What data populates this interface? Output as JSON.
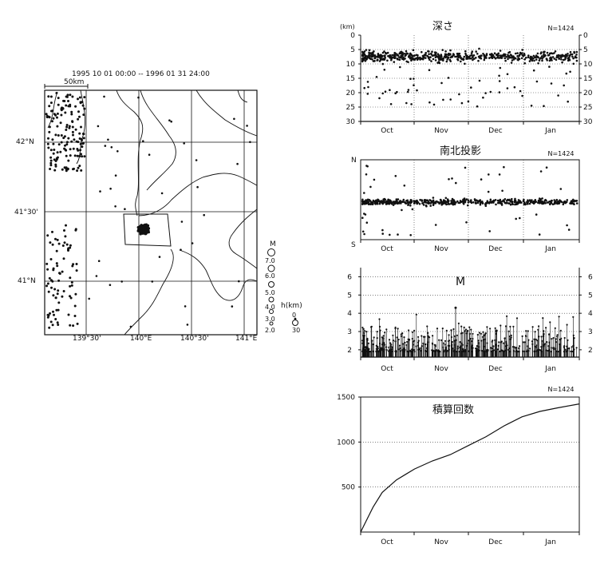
{
  "map": {
    "date_range": "1995 10 01 00:00 -- 1996 01 31 24:00",
    "scale_label": "50km",
    "lat_labels": [
      "42°N",
      "41°30'",
      "41°N"
    ],
    "lon_labels": [
      "139°30'",
      "140°E",
      "140°30'",
      "141°E"
    ],
    "mag_legend_title": "M",
    "mag_legend": [
      "7.0",
      "6.0",
      "5.0",
      "4.0",
      "3.0",
      "2.0"
    ],
    "depth_legend_title": "h(km)",
    "depth_legend": [
      "0",
      "30"
    ]
  },
  "chart_data": [
    {
      "type": "scatter",
      "title": "深さ",
      "count_label": "N=1424",
      "ylabel": "(km)",
      "yticks": [
        "0",
        "5",
        "10",
        "15",
        "20",
        "25",
        "30"
      ],
      "ylim": [
        0,
        30
      ],
      "x_labels": [
        "Oct",
        "Nov",
        "Dec",
        "Jan"
      ],
      "xlim": [
        "1995-10-01",
        "1996-01-31"
      ],
      "grid": true,
      "series": [
        {
          "values": "approx. 1424 hypocenters, depth mostly 5–10 km, scattered to ~25 km"
        }
      ]
    },
    {
      "type": "scatter",
      "title": "南北投影",
      "count_label": "N=1424",
      "y_top_label": "N",
      "y_bottom_label": "S",
      "x_labels": [
        "Oct",
        "Nov",
        "Dec",
        "Jan"
      ],
      "xlim": [
        "1995-10-01",
        "1996-01-31"
      ]
    },
    {
      "type": "bar",
      "title": "M",
      "yticks": [
        "2",
        "3",
        "4",
        "5",
        "6"
      ],
      "ylim": [
        1.6,
        6.5
      ],
      "x_labels": [
        "Oct",
        "Nov",
        "Dec",
        "Jan"
      ],
      "xlim": [
        "1995-10-01",
        "1996-01-31"
      ],
      "max_magnitude": 4.3
    },
    {
      "type": "line",
      "title": "積算回数",
      "count_label": "N=1424",
      "yticks": [
        "500",
        "1000",
        "1500"
      ],
      "ylim": [
        0,
        1500
      ],
      "x_labels": [
        "Oct",
        "Nov",
        "Dec",
        "Jan"
      ],
      "xlim": [
        "1995-10-01",
        "1996-01-31"
      ],
      "x": [
        0,
        3,
        7,
        12,
        20,
        30,
        40,
        50,
        60,
        70,
        80,
        90,
        100,
        110,
        122
      ],
      "y": [
        0,
        120,
        280,
        440,
        580,
        700,
        790,
        860,
        960,
        1060,
        1180,
        1280,
        1340,
        1380,
        1424
      ]
    }
  ]
}
